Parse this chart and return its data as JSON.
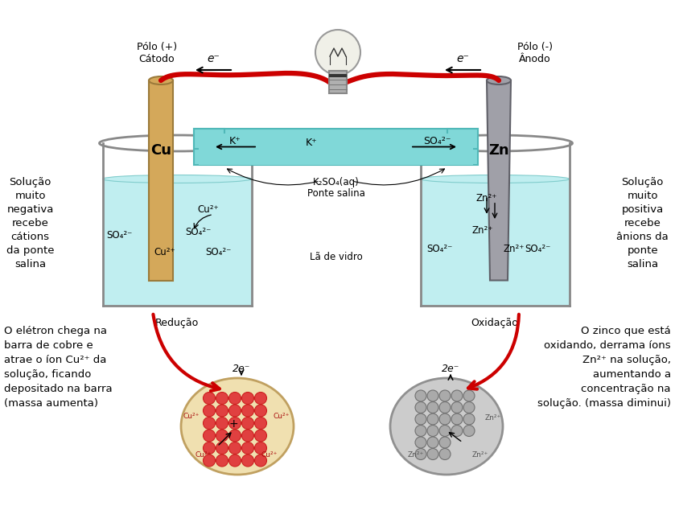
{
  "background_color": "#ffffff",
  "fig_width": 8.39,
  "fig_height": 6.29,
  "left_electrode_label": "Cu",
  "right_electrode_label": "Zn",
  "left_pole_label": "Pólo (+)\nCátodo",
  "right_pole_label": "Pólo (-)\nÂnodo",
  "electron_label": "e⁻",
  "salt_bridge_label1": "K⁺",
  "salt_bridge_label2": "K⁺",
  "salt_bridge_label3": "SO₄²⁻",
  "salt_bridge_chem": "K₂SO₄(aq)",
  "salt_bridge_name": "Ponte salina",
  "glass_wool": "Lã de vidro",
  "left_solution_text": "Solução\nmuito\nnegativa\nrecebe\ncátions\nda ponte\nsalina",
  "right_solution_text": "Solução\nmuito\npositiva\nrecebe\nânions da\nponte\nsalina",
  "reduction_label": "Redução",
  "oxidation_label": "Oxidação",
  "left_description": "O elétron chega na\nbarra de cobre e\natrae o íon Cu²⁺ da\nsolução, ficando\ndepositado na barra\n(massa aumenta)",
  "right_description": "O zinco que está\noxidando, derrama íons\nZn²⁺ na solução,\naumentando a\nconcentração na\nsolução. (massa diminui)",
  "left_ellipse_color": "#f0e0b0",
  "right_ellipse_color": "#cccccc",
  "left_atom_color": "#e04040",
  "right_atom_color": "#aaaaaa",
  "wire_color": "#cc0000",
  "electrode_cu_color": "#d4a85a",
  "electrode_cu_edge": "#9b7a3a",
  "electrode_zn_color": "#a0a0a8",
  "electrode_zn_edge": "#606068",
  "beaker_fill_color": "#c0eef0",
  "beaker_edge_color": "#888888",
  "bridge_fill_color": "#80d8d8",
  "bridge_tube_color": "#50b8b8",
  "text_color": "#000000",
  "label_fontsize": 9,
  "electrode_fontsize": 13,
  "description_fontsize": 9.5
}
